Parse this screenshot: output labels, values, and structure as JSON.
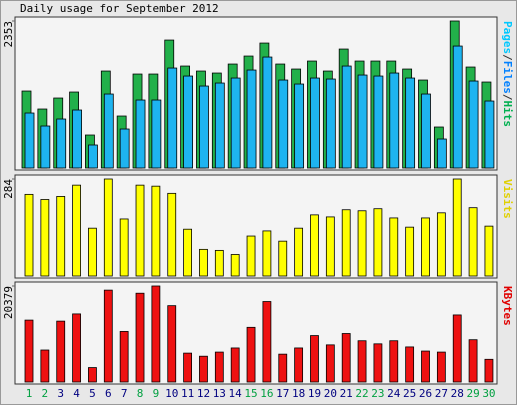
{
  "header": {
    "title": "Daily usage for September 2012"
  },
  "chart_data": [
    {
      "type": "bar",
      "ylim": [
        0,
        2353
      ],
      "yticks": [
        2353
      ],
      "label_parts": [
        "Pages",
        "/",
        "Files",
        "/",
        "Hits"
      ],
      "label_colors": [
        "#00c8ff",
        "#333333",
        "#0080ff",
        "#333333",
        "#00b050"
      ],
      "series": [
        {
          "name": "Hits",
          "color": "#22b04a",
          "values": [
            1232,
            944,
            1120,
            1216,
            528,
            1552,
            832,
            1504,
            1504,
            2048,
            1632,
            1552,
            1520,
            1664,
            1792,
            2000,
            1664,
            1584,
            1712,
            1552,
            1904,
            1712,
            1712,
            1712,
            1584,
            1408,
            656,
            2353,
            1616,
            1376
          ]
        },
        {
          "name": "Files",
          "color": "#1eb4f0",
          "values": [
            880,
            672,
            784,
            928,
            368,
            1184,
            624,
            1088,
            1088,
            1600,
            1472,
            1312,
            1360,
            1440,
            1568,
            1776,
            1408,
            1344,
            1440,
            1424,
            1632,
            1488,
            1472,
            1520,
            1440,
            1184,
            464,
            1952,
            1392,
            1072
          ]
        }
      ]
    },
    {
      "type": "bar",
      "ylim": [
        0,
        284
      ],
      "yticks": [
        284
      ],
      "label_parts": [
        "Visits"
      ],
      "label_colors": [
        "#e0d000"
      ],
      "series": [
        {
          "name": "Visits",
          "color": "#ffff00",
          "values": [
            239,
            224,
            233,
            266,
            140,
            284,
            167,
            266,
            263,
            242,
            137,
            78,
            75,
            63,
            117,
            132,
            102,
            140,
            179,
            173,
            194,
            191,
            197,
            170,
            143,
            170,
            185,
            284,
            200,
            146
          ]
        }
      ]
    },
    {
      "type": "bar",
      "ylim": [
        0,
        20379
      ],
      "yticks": [
        20379
      ],
      "label_parts": [
        "KBytes"
      ],
      "label_colors": [
        "#e00000"
      ],
      "categories": [
        "1",
        "2",
        "3",
        "4",
        "5",
        "6",
        "7",
        "8",
        "9",
        "10",
        "11",
        "12",
        "13",
        "14",
        "15",
        "16",
        "17",
        "18",
        "19",
        "20",
        "21",
        "22",
        "23",
        "24",
        "25",
        "26",
        "27",
        "28",
        "29",
        "30"
      ],
      "category_colors": [
        "#00a040",
        "#00a040",
        "#000080",
        "#000080",
        "#000080",
        "#000080",
        "#000080",
        "#00a040",
        "#00a040",
        "#000080",
        "#000080",
        "#000080",
        "#000080",
        "#000080",
        "#00a040",
        "#00a040",
        "#000080",
        "#000080",
        "#000080",
        "#000080",
        "#000080",
        "#00a040",
        "#00a040",
        "#000080",
        "#000080",
        "#000080",
        "#000080",
        "#000080",
        "#00a040",
        "#00a040"
      ],
      "series": [
        {
          "name": "KBytes",
          "color": "#ee1111",
          "values": [
            13140,
            6789,
            12921,
            14454,
            3066,
            19503,
            10731,
            18846,
            20379,
            16206,
            6132,
            5475,
            6351,
            7227,
            11607,
            17082,
            5913,
            7227,
            9855,
            7884,
            10293,
            8760,
            8103,
            8760,
            7446,
            6570,
            6351,
            14235,
            8979,
            4818
          ]
        }
      ]
    }
  ]
}
